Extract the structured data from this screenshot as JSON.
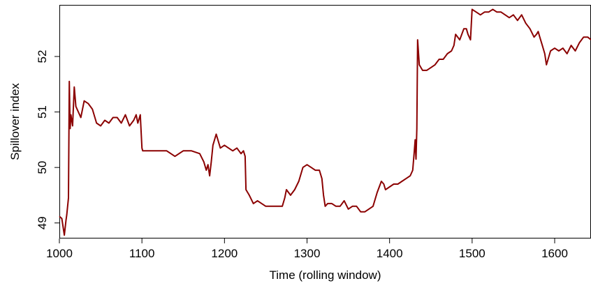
{
  "chart_data": {
    "type": "line",
    "title": "",
    "xlabel": "Time (rolling window)",
    "ylabel": "Spillover index",
    "xlim": [
      1000,
      1644
    ],
    "ylim": [
      48.72,
      52.93
    ],
    "xticks": [
      1000,
      1100,
      1200,
      1300,
      1400,
      1500,
      1600
    ],
    "yticks": [
      49,
      50,
      51,
      52
    ],
    "grid": false,
    "legend": "none",
    "line_color": "#8b0000",
    "series": [
      {
        "x": [
          1000,
          1003,
          1006,
          1008,
          1009,
          1011,
          1012,
          1013,
          1014,
          1016,
          1018,
          1020,
          1023,
          1026,
          1030,
          1035,
          1040,
          1045,
          1050,
          1055,
          1060,
          1065,
          1070,
          1075,
          1080,
          1085,
          1090,
          1093,
          1095,
          1098,
          1100,
          1101,
          1105,
          1110,
          1120,
          1130,
          1140,
          1150,
          1160,
          1170,
          1175,
          1178,
          1180,
          1182,
          1184,
          1186,
          1190,
          1195,
          1200,
          1205,
          1210,
          1215,
          1220,
          1223,
          1225,
          1226,
          1230,
          1235,
          1240,
          1250,
          1260,
          1270,
          1273,
          1275,
          1280,
          1285,
          1290,
          1295,
          1300,
          1305,
          1310,
          1315,
          1318,
          1320,
          1322,
          1325,
          1330,
          1335,
          1340,
          1345,
          1350,
          1355,
          1360,
          1365,
          1370,
          1375,
          1380,
          1385,
          1390,
          1393,
          1395,
          1400,
          1405,
          1410,
          1415,
          1420,
          1425,
          1428,
          1430,
          1431,
          1432,
          1433,
          1434,
          1436,
          1440,
          1445,
          1450,
          1455,
          1460,
          1465,
          1470,
          1475,
          1478,
          1480,
          1485,
          1490,
          1493,
          1495,
          1498,
          1500,
          1505,
          1510,
          1515,
          1520,
          1525,
          1530,
          1535,
          1540,
          1545,
          1550,
          1555,
          1560,
          1565,
          1570,
          1575,
          1578,
          1580,
          1582,
          1585,
          1588,
          1590,
          1595,
          1600,
          1605,
          1610,
          1615,
          1620,
          1625,
          1630,
          1635,
          1640,
          1644
        ],
        "values": [
          49.12,
          49.08,
          48.78,
          49.05,
          49.15,
          49.45,
          51.55,
          50.7,
          50.95,
          50.75,
          51.45,
          51.1,
          51.0,
          50.9,
          51.2,
          51.15,
          51.05,
          50.8,
          50.75,
          50.85,
          50.8,
          50.9,
          50.9,
          50.8,
          50.95,
          50.75,
          50.85,
          50.95,
          50.8,
          50.95,
          50.35,
          50.3,
          50.3,
          50.3,
          50.3,
          50.3,
          50.2,
          50.3,
          50.3,
          50.25,
          50.1,
          49.95,
          50.05,
          49.85,
          50.1,
          50.4,
          50.6,
          50.35,
          50.4,
          50.35,
          50.3,
          50.35,
          50.25,
          50.3,
          50.2,
          49.6,
          49.5,
          49.35,
          49.4,
          49.3,
          49.3,
          49.3,
          49.45,
          49.6,
          49.5,
          49.6,
          49.75,
          50.0,
          50.05,
          50.0,
          49.95,
          49.95,
          49.8,
          49.5,
          49.3,
          49.35,
          49.35,
          49.3,
          49.3,
          49.4,
          49.25,
          49.3,
          49.3,
          49.2,
          49.2,
          49.25,
          49.3,
          49.55,
          49.75,
          49.7,
          49.6,
          49.65,
          49.7,
          49.7,
          49.75,
          49.8,
          49.85,
          49.95,
          50.3,
          50.5,
          50.15,
          50.7,
          52.3,
          51.85,
          51.75,
          51.75,
          51.8,
          51.85,
          51.95,
          51.95,
          52.05,
          52.1,
          52.2,
          52.4,
          52.3,
          52.5,
          52.5,
          52.4,
          52.3,
          52.85,
          52.8,
          52.75,
          52.8,
          52.8,
          52.85,
          52.8,
          52.8,
          52.75,
          52.7,
          52.75,
          52.65,
          52.75,
          52.6,
          52.5,
          52.35,
          52.4,
          52.45,
          52.35,
          52.2,
          52.05,
          51.85,
          52.1,
          52.15,
          52.1,
          52.15,
          52.05,
          52.2,
          52.1,
          52.25,
          52.35,
          52.35,
          52.3
        ]
      }
    ]
  }
}
